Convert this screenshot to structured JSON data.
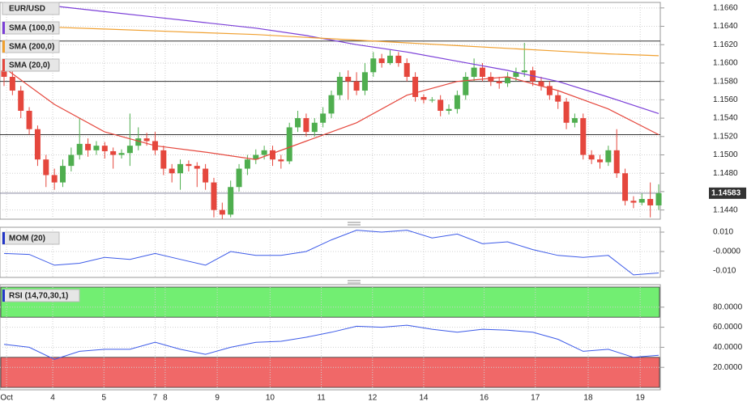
{
  "chart_data": [
    {
      "type": "candlestick",
      "title": "EUR/USD",
      "open": [
        1.1592,
        1.1585,
        1.157,
        1.1548,
        1.1528,
        1.1495,
        1.1478,
        1.147,
        1.1488,
        1.15,
        1.1512,
        1.1505,
        1.151,
        1.1504,
        1.15,
        1.1502,
        1.151,
        1.1518,
        1.1515,
        1.1505,
        1.1485,
        1.148,
        1.149,
        1.1488,
        1.1485,
        1.147,
        1.144,
        1.1435,
        1.1465,
        1.1485,
        1.1495,
        1.15,
        1.1505,
        1.1495,
        1.1493,
        1.153,
        1.154,
        1.1525,
        1.1535,
        1.1545,
        1.1565,
        1.1585,
        1.158,
        1.157,
        1.159,
        1.1605,
        1.16,
        1.1608,
        1.16,
        1.1585,
        1.1563,
        1.156,
        1.156,
        1.1548,
        1.155,
        1.1565,
        1.1585,
        1.1595,
        1.1585,
        1.158,
        1.1578,
        1.1585,
        1.159,
        1.1592,
        1.158,
        1.1575,
        1.1565,
        1.1558,
        1.1535,
        1.154,
        1.15,
        1.1495,
        1.1492,
        1.1505,
        1.148,
        1.145,
        1.1448,
        1.1452,
        1.1445
      ],
      "high": [
        1.16,
        1.1592,
        1.1575,
        1.1552,
        1.1532,
        1.15,
        1.1485,
        1.1495,
        1.1508,
        1.154,
        1.1518,
        1.1515,
        1.1514,
        1.1508,
        1.1506,
        1.1545,
        1.153,
        1.1524,
        1.1525,
        1.151,
        1.149,
        1.1495,
        1.1494,
        1.1492,
        1.149,
        1.1475,
        1.1448,
        1.1472,
        1.149,
        1.15,
        1.1506,
        1.151,
        1.151,
        1.15,
        1.1535,
        1.1548,
        1.1545,
        1.154,
        1.1552,
        1.157,
        1.159,
        1.1592,
        1.159,
        1.16,
        1.1612,
        1.161,
        1.1614,
        1.1612,
        1.1605,
        1.159,
        1.1566,
        1.1563,
        1.1565,
        1.1555,
        1.157,
        1.159,
        1.1605,
        1.16,
        1.159,
        1.1585,
        1.159,
        1.1595,
        1.1622,
        1.1596,
        1.1585,
        1.158,
        1.157,
        1.1562,
        1.1545,
        1.1545,
        1.1505,
        1.15,
        1.151,
        1.1528,
        1.1485,
        1.1455,
        1.1458,
        1.147,
        1.1468
      ],
      "low": [
        1.1575,
        1.1565,
        1.154,
        1.1522,
        1.1488,
        1.1465,
        1.1462,
        1.1465,
        1.1482,
        1.1495,
        1.1498,
        1.15,
        1.1496,
        1.1485,
        1.1496,
        1.1488,
        1.1505,
        1.151,
        1.15,
        1.1478,
        1.147,
        1.1462,
        1.1482,
        1.1465,
        1.1462,
        1.1432,
        1.143,
        1.1432,
        1.146,
        1.1478,
        1.149,
        1.1495,
        1.1488,
        1.1485,
        1.149,
        1.1525,
        1.152,
        1.152,
        1.153,
        1.154,
        1.156,
        1.156,
        1.1565,
        1.1565,
        1.1585,
        1.1595,
        1.1598,
        1.1596,
        1.158,
        1.1558,
        1.1556,
        1.1557,
        1.1542,
        1.1544,
        1.1545,
        1.156,
        1.158,
        1.158,
        1.1575,
        1.1572,
        1.1574,
        1.158,
        1.1585,
        1.1575,
        1.157,
        1.156,
        1.155,
        1.1528,
        1.153,
        1.1495,
        1.149,
        1.1485,
        1.1488,
        1.1475,
        1.1445,
        1.1442,
        1.1445,
        1.1432,
        1.144
      ],
      "close": [
        1.1585,
        1.157,
        1.1548,
        1.1528,
        1.1495,
        1.1478,
        1.147,
        1.1488,
        1.15,
        1.1512,
        1.1505,
        1.151,
        1.1504,
        1.15,
        1.1502,
        1.151,
        1.1518,
        1.1515,
        1.1505,
        1.1485,
        1.148,
        1.149,
        1.1488,
        1.1485,
        1.147,
        1.144,
        1.1435,
        1.1465,
        1.1485,
        1.1495,
        1.15,
        1.1505,
        1.1495,
        1.1493,
        1.153,
        1.154,
        1.1525,
        1.1535,
        1.1545,
        1.1565,
        1.1585,
        1.158,
        1.157,
        1.159,
        1.1605,
        1.16,
        1.1608,
        1.16,
        1.1585,
        1.1563,
        1.156,
        1.156,
        1.1548,
        1.155,
        1.1565,
        1.1585,
        1.1595,
        1.1585,
        1.158,
        1.1578,
        1.1585,
        1.159,
        1.1592,
        1.158,
        1.1575,
        1.1565,
        1.1558,
        1.1535,
        1.154,
        1.15,
        1.1495,
        1.1492,
        1.1505,
        1.148,
        1.145,
        1.1448,
        1.1452,
        1.1445,
        1.14583
      ],
      "up_color": "#4fae4f",
      "down_color": "#e5473d",
      "series": [
        {
          "name": "SMA (100,0)",
          "color": "#7b3fd8",
          "index": [
            0,
            6,
            12,
            18,
            24,
            30,
            36,
            42,
            48,
            54,
            60,
            66,
            72,
            78
          ],
          "values": [
            1.1666,
            1.1662,
            1.1656,
            1.165,
            1.1644,
            1.1638,
            1.163,
            1.162,
            1.1612,
            1.1602,
            1.1592,
            1.158,
            1.1563,
            1.1545
          ]
        },
        {
          "name": "SMA (200,0)",
          "color": "#f0a030",
          "index": [
            0,
            6,
            12,
            18,
            24,
            30,
            36,
            42,
            48,
            54,
            60,
            66,
            72,
            78
          ],
          "values": [
            1.1641,
            1.1639,
            1.1637,
            1.1635,
            1.1633,
            1.1631,
            1.1628,
            1.1625,
            1.1622,
            1.1619,
            1.1616,
            1.1613,
            1.161,
            1.1608
          ]
        },
        {
          "name": "SMA (20,0)",
          "color": "#e5473d",
          "index": [
            0,
            6,
            12,
            18,
            24,
            30,
            36,
            42,
            48,
            54,
            60,
            66,
            72,
            78
          ],
          "values": [
            1.1595,
            1.1555,
            1.1525,
            1.151,
            1.1503,
            1.1495,
            1.1515,
            1.1535,
            1.1565,
            1.158,
            1.1585,
            1.157,
            1.155,
            1.1522
          ]
        }
      ],
      "levels": [
        1.1624,
        1.158,
        1.1522
      ],
      "last_price": 1.14583,
      "ylim": [
        1.143,
        1.1666
      ],
      "yticks": [
        {
          "value": 1.144,
          "label": "1.1440"
        },
        {
          "value": 1.146,
          "label": "1.1460"
        },
        {
          "value": 1.148,
          "label": "1.1480"
        },
        {
          "value": 1.15,
          "label": "1.1500"
        },
        {
          "value": 1.152,
          "label": "1.1520"
        },
        {
          "value": 1.154,
          "label": "1.1540"
        },
        {
          "value": 1.156,
          "label": "1.1560"
        },
        {
          "value": 1.158,
          "label": "1.1580"
        },
        {
          "value": 1.16,
          "label": "1.1600"
        },
        {
          "value": 1.162,
          "label": "1.1620"
        },
        {
          "value": 1.164,
          "label": "1.1640"
        },
        {
          "value": 1.166,
          "label": "1.1660"
        }
      ],
      "x_labels": [
        {
          "index": 0.3,
          "label": "Oct"
        },
        {
          "index": 5.8,
          "label": "4"
        },
        {
          "index": 11.9,
          "label": "5"
        },
        {
          "index": 18,
          "label": "7"
        },
        {
          "index": 19.2,
          "label": "8"
        },
        {
          "index": 25.4,
          "label": "9"
        },
        {
          "index": 31.7,
          "label": "10"
        },
        {
          "index": 37.8,
          "label": "11"
        },
        {
          "index": 43.9,
          "label": "12"
        },
        {
          "index": 50,
          "label": "14"
        },
        {
          "index": 57.2,
          "label": "16"
        },
        {
          "index": 63.3,
          "label": "17"
        },
        {
          "index": 69.6,
          "label": "18"
        },
        {
          "index": 75.8,
          "label": "19"
        }
      ],
      "grid": true
    },
    {
      "type": "line",
      "title": "MOM (20)",
      "color": "#3c5ae8",
      "index": [
        0,
        3,
        6,
        9,
        12,
        15,
        18,
        21,
        24,
        27,
        30,
        33,
        36,
        39,
        42,
        45,
        48,
        51,
        54,
        57,
        60,
        63,
        66,
        69,
        72,
        75,
        78
      ],
      "values": [
        -0.001,
        -0.0015,
        -0.007,
        -0.006,
        -0.003,
        -0.004,
        -0.001,
        -0.004,
        -0.007,
        0.0,
        -0.002,
        -0.002,
        0.0,
        0.006,
        0.011,
        0.01,
        0.011,
        0.007,
        0.009,
        0.004,
        0.005,
        0.001,
        -0.002,
        -0.003,
        -0.002,
        -0.012,
        -0.011
      ],
      "ylim": [
        -0.0133,
        0.0125
      ],
      "yticks": [
        {
          "value": 0.01,
          "label": "0.010"
        },
        {
          "value": 0,
          "label": "-0.0000"
        },
        {
          "value": -0.01,
          "label": "-0.010"
        }
      ],
      "grid": true
    },
    {
      "type": "line",
      "title": "RSI (14,70,30,1)",
      "color": "#3c5ae8",
      "index": [
        0,
        3,
        6,
        9,
        12,
        15,
        18,
        21,
        24,
        27,
        30,
        33,
        36,
        39,
        42,
        45,
        48,
        51,
        54,
        57,
        60,
        63,
        66,
        69,
        72,
        75,
        78
      ],
      "values": [
        43,
        40,
        28,
        36,
        38,
        38,
        45,
        38,
        33,
        40,
        45,
        46,
        50,
        55,
        61,
        60,
        62,
        58,
        55,
        58,
        57,
        55,
        48,
        36,
        38,
        30,
        32
      ],
      "zones": [
        {
          "from": 70,
          "to": 100,
          "color": "#72ee72"
        },
        {
          "from": 0,
          "to": 30,
          "color": "#f06868"
        }
      ],
      "ylim": [
        -2.4,
        102.4
      ],
      "yticks": [
        {
          "value": 80,
          "label": "80.0000"
        },
        {
          "value": 60,
          "label": "60.0000"
        },
        {
          "value": 40,
          "label": "40.0000"
        },
        {
          "value": 20,
          "label": "20.0000"
        }
      ],
      "grid": true
    }
  ]
}
